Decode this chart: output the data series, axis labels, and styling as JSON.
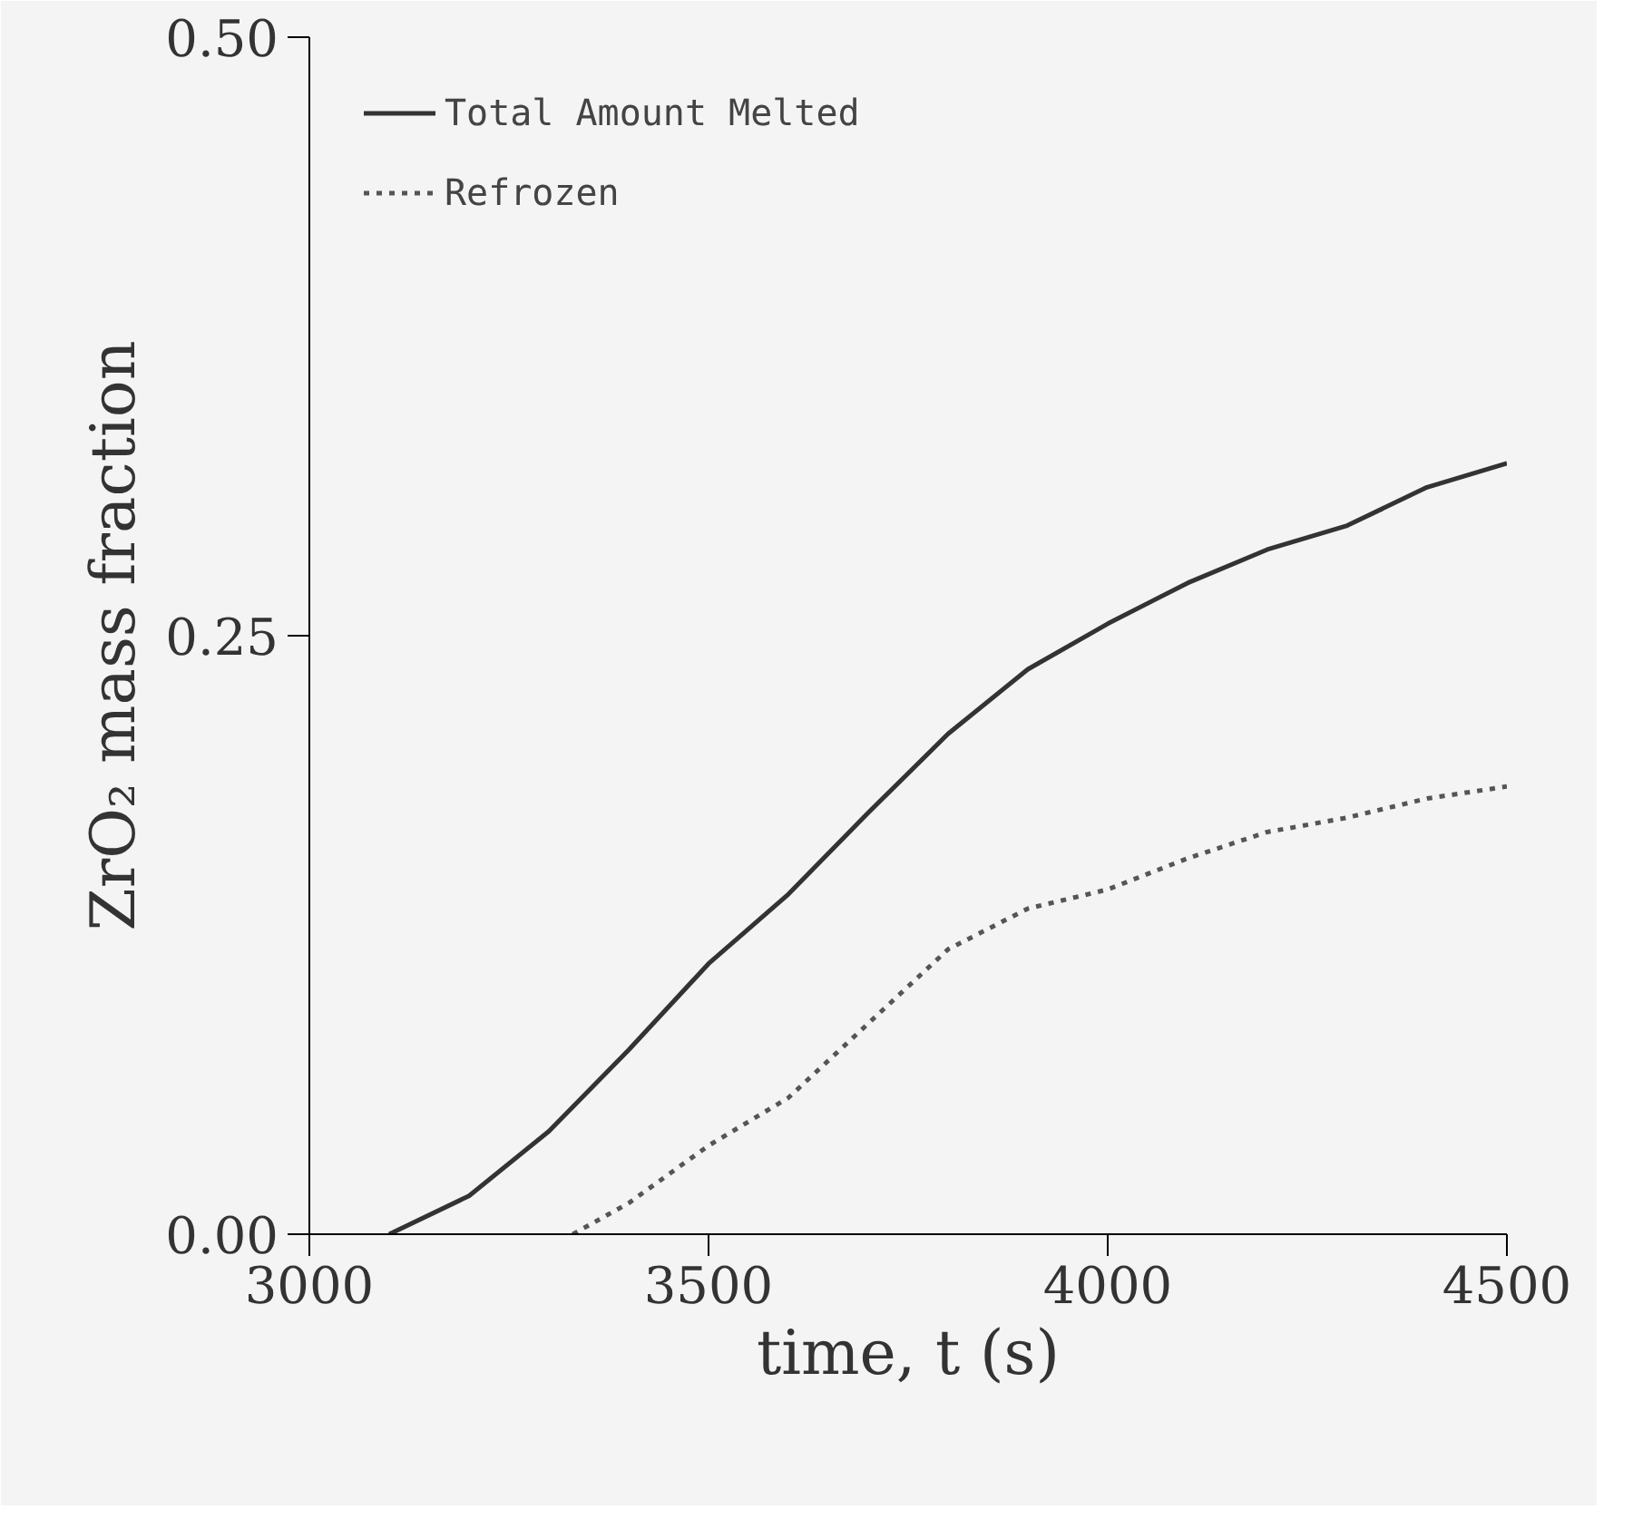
{
  "chart_data": {
    "type": "line",
    "xlabel": "time, t (s)",
    "ylabel": "ZrO₂ mass fraction",
    "x": [
      3100,
      3200,
      3300,
      3400,
      3500,
      3600,
      3700,
      3800,
      3900,
      4000,
      4100,
      4200,
      4300,
      4400,
      4500
    ],
    "series": [
      {
        "name": "Total Amount Melted",
        "color": "#333333",
        "line_style": "solid",
        "values": [
          0.0,
          0.016,
          0.043,
          0.077,
          0.113,
          0.142,
          0.176,
          0.209,
          0.236,
          0.255,
          0.272,
          0.286,
          0.296,
          0.312,
          0.322
        ]
      },
      {
        "name": "Refrozen",
        "color": "#555555",
        "line_style": "dotted",
        "x": [
          3330,
          3400,
          3500,
          3600,
          3700,
          3800,
          3900,
          4000,
          4100,
          4200,
          4300,
          4400,
          4500
        ],
        "values": [
          0.0,
          0.013,
          0.037,
          0.057,
          0.088,
          0.119,
          0.136,
          0.144,
          0.157,
          0.168,
          0.174,
          0.182,
          0.187
        ]
      }
    ],
    "xlim": [
      3000,
      4500
    ],
    "ylim": [
      0,
      0.5
    ],
    "xticks": [
      3000,
      3500,
      4000,
      4500
    ],
    "yticks": [
      {
        "value": 0,
        "label": "0.00"
      },
      {
        "value": 0.25,
        "label": "0.25"
      },
      {
        "value": 0.5,
        "label": "0.50"
      }
    ],
    "grid": false,
    "legend": "top left",
    "marker": "none"
  }
}
